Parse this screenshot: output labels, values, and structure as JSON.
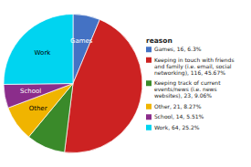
{
  "chart_data": {
    "type": "pie",
    "title": "reason",
    "categories": [
      "Games, 16, 6.3%",
      "Keeping in touch with friends\nand family (i.e. email, social\nnetworking), 116, 45.67%",
      "Keeping track of current\nevents/news (i.e. news\nwebsites), 23, 9.06%",
      "Other, 21, 8.27%",
      "School, 14, 5.51%",
      "Work, 64, 25.2%"
    ],
    "slice_labels": [
      "Games",
      null,
      null,
      "Other",
      "School",
      "Work"
    ],
    "values": [
      16,
      116,
      23,
      21,
      14,
      64
    ],
    "colors": [
      "#4472c4",
      "#cc2222",
      "#3a8a2a",
      "#f0b400",
      "#8b2d8b",
      "#00d4f0"
    ],
    "legend": "right"
  }
}
